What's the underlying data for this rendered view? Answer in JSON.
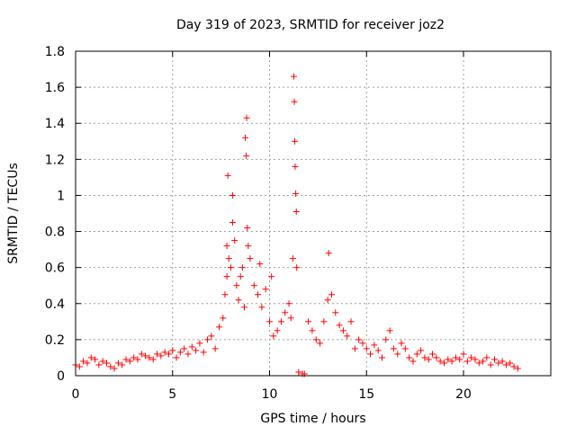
{
  "chart_data": {
    "type": "scatter",
    "title": "Day 319 of 2023, SRMTID for receiver joz2",
    "xlabel": "GPS time / hours",
    "ylabel": "SRMTID / TECUs",
    "xlim": [
      0,
      24.5
    ],
    "ylim": [
      0,
      1.8
    ],
    "x_ticks": [
      0,
      5,
      10,
      15,
      20
    ],
    "y_ticks": [
      0,
      0.2,
      0.4,
      0.6,
      0.8,
      1,
      1.2,
      1.4,
      1.6,
      1.8
    ],
    "x_tick_labels": [
      "0",
      "5",
      "10",
      "15",
      "20"
    ],
    "y_tick_labels": [
      "0",
      "0.2",
      "0.4",
      "0.6",
      "0.8",
      "1",
      "1.2",
      "1.4",
      "1.6",
      "1.8"
    ],
    "grid": true,
    "marker": "+",
    "marker_color": "#ff0000",
    "series": [
      {
        "name": "joz2",
        "points": [
          [
            0.0,
            0.06
          ],
          [
            0.2,
            0.05
          ],
          [
            0.4,
            0.08
          ],
          [
            0.6,
            0.07
          ],
          [
            0.8,
            0.1
          ],
          [
            1.0,
            0.09
          ],
          [
            1.2,
            0.06
          ],
          [
            1.4,
            0.08
          ],
          [
            1.6,
            0.07
          ],
          [
            1.8,
            0.05
          ],
          [
            2.0,
            0.04
          ],
          [
            2.2,
            0.07
          ],
          [
            2.4,
            0.06
          ],
          [
            2.6,
            0.09
          ],
          [
            2.8,
            0.08
          ],
          [
            3.0,
            0.1
          ],
          [
            3.2,
            0.09
          ],
          [
            3.4,
            0.12
          ],
          [
            3.6,
            0.11
          ],
          [
            3.8,
            0.1
          ],
          [
            4.0,
            0.09
          ],
          [
            4.2,
            0.12
          ],
          [
            4.4,
            0.11
          ],
          [
            4.6,
            0.13
          ],
          [
            4.8,
            0.12
          ],
          [
            5.0,
            0.14
          ],
          [
            5.2,
            0.1
          ],
          [
            5.4,
            0.13
          ],
          [
            5.6,
            0.15
          ],
          [
            5.8,
            0.12
          ],
          [
            6.0,
            0.16
          ],
          [
            6.2,
            0.14
          ],
          [
            6.4,
            0.18
          ],
          [
            6.6,
            0.13
          ],
          [
            6.8,
            0.2
          ],
          [
            7.0,
            0.22
          ],
          [
            7.2,
            0.15
          ],
          [
            7.4,
            0.27
          ],
          [
            7.6,
            0.32
          ],
          [
            7.7,
            0.45
          ],
          [
            7.8,
            0.55
          ],
          [
            7.8,
            0.72
          ],
          [
            7.85,
            1.11
          ],
          [
            7.9,
            0.65
          ],
          [
            8.0,
            0.6
          ],
          [
            8.1,
            0.85
          ],
          [
            8.1,
            1.0
          ],
          [
            8.2,
            0.75
          ],
          [
            8.3,
            0.5
          ],
          [
            8.4,
            0.42
          ],
          [
            8.5,
            0.55
          ],
          [
            8.6,
            0.6
          ],
          [
            8.7,
            0.38
          ],
          [
            8.75,
            1.32
          ],
          [
            8.8,
            1.22
          ],
          [
            8.82,
            1.43
          ],
          [
            8.85,
            0.82
          ],
          [
            8.9,
            0.72
          ],
          [
            9.0,
            0.65
          ],
          [
            9.2,
            0.5
          ],
          [
            9.4,
            0.45
          ],
          [
            9.5,
            0.62
          ],
          [
            9.6,
            0.38
          ],
          [
            9.8,
            0.48
          ],
          [
            10.0,
            0.3
          ],
          [
            10.1,
            0.55
          ],
          [
            10.2,
            0.22
          ],
          [
            10.4,
            0.25
          ],
          [
            10.6,
            0.3
          ],
          [
            10.8,
            0.35
          ],
          [
            11.0,
            0.4
          ],
          [
            11.1,
            0.32
          ],
          [
            11.2,
            0.65
          ],
          [
            11.25,
            1.66
          ],
          [
            11.28,
            1.52
          ],
          [
            11.3,
            1.3
          ],
          [
            11.32,
            1.16
          ],
          [
            11.35,
            1.01
          ],
          [
            11.38,
            0.91
          ],
          [
            11.4,
            0.6
          ],
          [
            11.5,
            0.02
          ],
          [
            11.7,
            0.01
          ],
          [
            11.8,
            0.01
          ],
          [
            12.0,
            0.3
          ],
          [
            12.2,
            0.25
          ],
          [
            12.4,
            0.2
          ],
          [
            12.6,
            0.18
          ],
          [
            12.8,
            0.3
          ],
          [
            13.0,
            0.42
          ],
          [
            13.05,
            0.68
          ],
          [
            13.2,
            0.45
          ],
          [
            13.4,
            0.35
          ],
          [
            13.6,
            0.28
          ],
          [
            13.8,
            0.25
          ],
          [
            14.0,
            0.22
          ],
          [
            14.2,
            0.3
          ],
          [
            14.4,
            0.15
          ],
          [
            14.6,
            0.2
          ],
          [
            14.8,
            0.18
          ],
          [
            15.0,
            0.15
          ],
          [
            15.2,
            0.12
          ],
          [
            15.4,
            0.17
          ],
          [
            15.6,
            0.14
          ],
          [
            15.8,
            0.1
          ],
          [
            16.0,
            0.2
          ],
          [
            16.2,
            0.25
          ],
          [
            16.4,
            0.15
          ],
          [
            16.6,
            0.12
          ],
          [
            16.8,
            0.18
          ],
          [
            17.0,
            0.15
          ],
          [
            17.2,
            0.1
          ],
          [
            17.4,
            0.08
          ],
          [
            17.6,
            0.12
          ],
          [
            17.8,
            0.14
          ],
          [
            18.0,
            0.1
          ],
          [
            18.2,
            0.09
          ],
          [
            18.4,
            0.12
          ],
          [
            18.6,
            0.1
          ],
          [
            18.8,
            0.08
          ],
          [
            19.0,
            0.07
          ],
          [
            19.2,
            0.09
          ],
          [
            19.4,
            0.08
          ],
          [
            19.6,
            0.1
          ],
          [
            19.8,
            0.09
          ],
          [
            20.0,
            0.12
          ],
          [
            20.2,
            0.08
          ],
          [
            20.4,
            0.1
          ],
          [
            20.6,
            0.09
          ],
          [
            20.8,
            0.07
          ],
          [
            21.0,
            0.08
          ],
          [
            21.2,
            0.1
          ],
          [
            21.4,
            0.06
          ],
          [
            21.6,
            0.09
          ],
          [
            21.8,
            0.07
          ],
          [
            22.0,
            0.08
          ],
          [
            22.2,
            0.06
          ],
          [
            22.4,
            0.07
          ],
          [
            22.6,
            0.05
          ],
          [
            22.8,
            0.04
          ]
        ]
      }
    ]
  }
}
